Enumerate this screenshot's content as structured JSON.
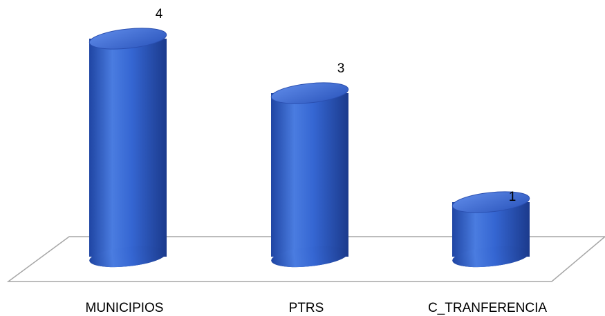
{
  "chart_data": {
    "type": "bar",
    "style": "3d-cylinder",
    "categories": [
      "MUNICIPIOS",
      "PTRS",
      "C_TRANFERENCIA"
    ],
    "values": [
      4,
      3,
      1
    ],
    "data_labels": [
      "4",
      "3",
      "1"
    ],
    "ylim": [
      0,
      4
    ],
    "grid": false,
    "legend": "none",
    "colors": {
      "bar_light": "#4f7fe0",
      "bar_mid": "#2f5fcc",
      "bar_dark": "#1c3f96",
      "bar_top": "#3a66cf",
      "bar_top_highlight": "#5b86e6",
      "floor_stroke": "#a6a6a6"
    }
  }
}
